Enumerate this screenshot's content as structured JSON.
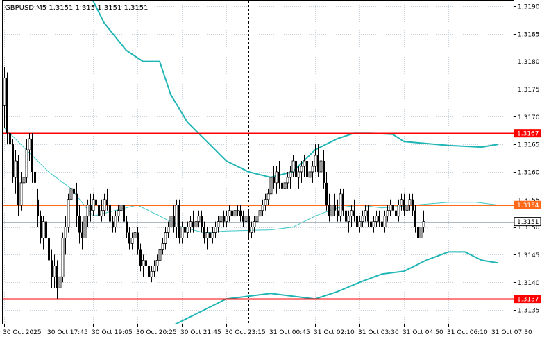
{
  "chart_data": {
    "type": "candlestick",
    "title": "GBPUSD,M5  1.3151 1.315  1.3151 1.3151",
    "ylim": [
      1.31325,
      1.3191
    ],
    "y_ticks": [
      "1.3135",
      "1.3140",
      "1.3145",
      "1.3150",
      "1.3155",
      "1.3160",
      "1.3165",
      "1.3170",
      "1.3175",
      "1.3180",
      "1.3185",
      "1.3190"
    ],
    "x_ticks": [
      {
        "index": 0,
        "label": "30 Oct 2025"
      },
      {
        "index": 16,
        "label": "30 Oct 17:45"
      },
      {
        "index": 32,
        "label": "30 Oct 19:05"
      },
      {
        "index": 48,
        "label": "30 Oct 20:25"
      },
      {
        "index": 64,
        "label": "30 Oct 21:45"
      },
      {
        "index": 80,
        "label": "30 Oct 23:15"
      },
      {
        "index": 96,
        "label": "31 Oct 00:45"
      },
      {
        "index": 112,
        "label": "31 Oct 02:10"
      },
      {
        "index": 128,
        "label": "31 Oct 03:30"
      },
      {
        "index": 144,
        "label": "31 Oct 04:50"
      },
      {
        "index": 160,
        "label": "31 Oct 06:10"
      },
      {
        "index": 176,
        "label": "31 Oct 07:30"
      }
    ],
    "levels": [
      {
        "value": 1.3167,
        "label": "1.3167",
        "color": "#ff0000",
        "width": 2
      },
      {
        "value": 1.3154,
        "label": "1.3154",
        "color": "#ff6a1a",
        "width": 1
      },
      {
        "value": 1.3137,
        "label": "1.3137",
        "color": "#ff0000",
        "width": 2
      }
    ],
    "current_price": {
      "value": 1.3151,
      "label": "1.3151"
    },
    "vertical_marker_index": 88,
    "bands": {
      "upper": [
        [
          0,
          1.3205
        ],
        [
          28,
          1.3195
        ],
        [
          36,
          1.3187
        ],
        [
          44,
          1.3182
        ],
        [
          50,
          1.318
        ],
        [
          56,
          1.318
        ],
        [
          60,
          1.3174
        ],
        [
          66,
          1.3169
        ],
        [
          72,
          1.3166
        ],
        [
          80,
          1.3162
        ],
        [
          88,
          1.316
        ],
        [
          96,
          1.3159
        ],
        [
          104,
          1.316
        ],
        [
          112,
          1.3164
        ],
        [
          120,
          1.3166
        ],
        [
          126,
          1.3167
        ],
        [
          132,
          1.3167
        ],
        [
          140,
          1.31668
        ],
        [
          144,
          1.31655
        ],
        [
          160,
          1.31648
        ],
        [
          172,
          1.31645
        ],
        [
          178,
          1.3165
        ]
      ],
      "middle": [
        [
          0,
          1.3168
        ],
        [
          10,
          1.3163
        ],
        [
          16,
          1.316
        ],
        [
          24,
          1.3157
        ],
        [
          32,
          1.3152
        ],
        [
          40,
          1.3153
        ],
        [
          48,
          1.3154
        ],
        [
          56,
          1.3152
        ],
        [
          64,
          1.315
        ],
        [
          72,
          1.3149
        ],
        [
          80,
          1.31493
        ],
        [
          96,
          1.31495
        ],
        [
          104,
          1.315
        ],
        [
          112,
          1.3152
        ],
        [
          120,
          1.31535
        ],
        [
          128,
          1.3154
        ],
        [
          136,
          1.31535
        ],
        [
          148,
          1.3154
        ],
        [
          160,
          1.31545
        ],
        [
          170,
          1.31545
        ],
        [
          178,
          1.3154
        ]
      ],
      "lower": [
        [
          50,
          1.3131
        ],
        [
          56,
          1.3131
        ],
        [
          60,
          1.3132
        ],
        [
          64,
          1.3133
        ],
        [
          72,
          1.3135
        ],
        [
          80,
          1.3137
        ],
        [
          88,
          1.31375
        ],
        [
          96,
          1.3138
        ],
        [
          104,
          1.31375
        ],
        [
          112,
          1.3137
        ],
        [
          120,
          1.31383
        ],
        [
          128,
          1.314
        ],
        [
          136,
          1.31415
        ],
        [
          144,
          1.3142
        ],
        [
          152,
          1.3144
        ],
        [
          160,
          1.31455
        ],
        [
          166,
          1.31455
        ],
        [
          172,
          1.3144
        ],
        [
          178,
          1.31435
        ]
      ]
    },
    "candles": [
      [
        1.3172,
        1.3179,
        1.3168,
        1.3177
      ],
      [
        1.3177,
        1.3178,
        1.3165,
        1.3167
      ],
      [
        1.3167,
        1.3168,
        1.3164,
        1.3165
      ],
      [
        1.3165,
        1.3166,
        1.3158,
        1.3159
      ],
      [
        1.3159,
        1.3164,
        1.3156,
        1.3162
      ],
      [
        1.3162,
        1.3163,
        1.3152,
        1.3154
      ],
      [
        1.3154,
        1.316,
        1.3153,
        1.3158
      ],
      [
        1.3158,
        1.3161,
        1.3154,
        1.3159
      ],
      [
        1.3159,
        1.3166,
        1.3158,
        1.3164
      ],
      [
        1.3164,
        1.3167,
        1.3162,
        1.3166
      ],
      [
        1.3166,
        1.3167,
        1.3158,
        1.316
      ],
      [
        1.316,
        1.3163,
        1.3154,
        1.3158
      ],
      [
        1.3155,
        1.3157,
        1.315,
        1.3152
      ],
      [
        1.3152,
        1.3153,
        1.3147,
        1.3148
      ],
      [
        1.3148,
        1.3152,
        1.3146,
        1.3151
      ],
      [
        1.3151,
        1.3152,
        1.3146,
        1.3148
      ],
      [
        1.3148,
        1.3149,
        1.3143,
        1.3144
      ],
      [
        1.3144,
        1.3146,
        1.3139,
        1.3141
      ],
      [
        1.3141,
        1.3145,
        1.3139,
        1.3143
      ],
      [
        1.3143,
        1.3144,
        1.3137,
        1.3139
      ],
      [
        1.3139,
        1.3143,
        1.3134,
        1.3141
      ],
      [
        1.3141,
        1.3149,
        1.314,
        1.3148
      ],
      [
        1.3148,
        1.3152,
        1.3145,
        1.315
      ],
      [
        1.315,
        1.3156,
        1.3149,
        1.3155
      ],
      [
        1.3155,
        1.3158,
        1.3152,
        1.3157
      ],
      [
        1.3157,
        1.3159,
        1.3154,
        1.3156
      ],
      [
        1.3156,
        1.3158,
        1.315,
        1.3152
      ],
      [
        1.3152,
        1.3154,
        1.3147,
        1.3149
      ],
      [
        1.3149,
        1.3151,
        1.3146,
        1.3148
      ],
      [
        1.3148,
        1.3153,
        1.3147,
        1.3152
      ],
      [
        1.3152,
        1.3155,
        1.315,
        1.3154
      ],
      [
        1.3154,
        1.3156,
        1.3151,
        1.3153
      ],
      [
        1.3153,
        1.3156,
        1.3152,
        1.3155
      ],
      [
        1.3155,
        1.3157,
        1.3153,
        1.3154
      ],
      [
        1.3154,
        1.3156,
        1.3151,
        1.3152
      ],
      [
        1.3152,
        1.3155,
        1.3151,
        1.3153
      ],
      [
        1.3153,
        1.3156,
        1.3152,
        1.3155
      ],
      [
        1.3155,
        1.3157,
        1.3153,
        1.3154
      ],
      [
        1.3154,
        1.3155,
        1.315,
        1.3151
      ],
      [
        1.3151,
        1.3152,
        1.3149,
        1.315
      ],
      [
        1.315,
        1.3153,
        1.3149,
        1.3152
      ],
      [
        1.3152,
        1.3154,
        1.3151,
        1.3153
      ],
      [
        1.3153,
        1.3155,
        1.3152,
        1.3154
      ],
      [
        1.3154,
        1.3155,
        1.315,
        1.3151
      ],
      [
        1.3151,
        1.3152,
        1.3148,
        1.3149
      ],
      [
        1.3149,
        1.315,
        1.3146,
        1.3147
      ],
      [
        1.3147,
        1.3149,
        1.3146,
        1.3148
      ],
      [
        1.3148,
        1.315,
        1.3147,
        1.3149
      ],
      [
        1.3149,
        1.315,
        1.3145,
        1.3146
      ],
      [
        1.3146,
        1.3147,
        1.3142,
        1.3143
      ],
      [
        1.3143,
        1.3145,
        1.3141,
        1.3144
      ],
      [
        1.3144,
        1.3145,
        1.3142,
        1.3143
      ],
      [
        1.3143,
        1.3144,
        1.3139,
        1.3141
      ],
      [
        1.3141,
        1.3143,
        1.314,
        1.3142
      ],
      [
        1.3142,
        1.3144,
        1.3141,
        1.3143
      ],
      [
        1.3143,
        1.3145,
        1.3142,
        1.3144
      ],
      [
        1.3144,
        1.3147,
        1.3143,
        1.3146
      ],
      [
        1.3146,
        1.3148,
        1.3145,
        1.3147
      ],
      [
        1.3147,
        1.315,
        1.3146,
        1.3149
      ],
      [
        1.3149,
        1.3151,
        1.3148,
        1.315
      ],
      [
        1.315,
        1.3153,
        1.3149,
        1.3152
      ],
      [
        1.3152,
        1.3154,
        1.3149,
        1.315
      ],
      [
        1.315,
        1.3155,
        1.3148,
        1.3154
      ],
      [
        1.3154,
        1.3155,
        1.3147,
        1.3148
      ],
      [
        1.3148,
        1.3151,
        1.3147,
        1.315
      ],
      [
        1.315,
        1.3152,
        1.3148,
        1.3149
      ],
      [
        1.3149,
        1.3151,
        1.3148,
        1.315
      ],
      [
        1.315,
        1.3152,
        1.3149,
        1.3151
      ],
      [
        1.3151,
        1.3153,
        1.3149,
        1.315
      ],
      [
        1.315,
        1.3152,
        1.3148,
        1.3151
      ],
      [
        1.3151,
        1.3153,
        1.315,
        1.3152
      ],
      [
        1.3152,
        1.3153,
        1.3149,
        1.315
      ],
      [
        1.315,
        1.3151,
        1.3147,
        1.3148
      ],
      [
        1.3148,
        1.315,
        1.3146,
        1.3149
      ],
      [
        1.3149,
        1.315,
        1.3147,
        1.3148
      ],
      [
        1.3148,
        1.315,
        1.3147,
        1.3149
      ],
      [
        1.3149,
        1.3151,
        1.3148,
        1.315
      ],
      [
        1.315,
        1.3152,
        1.3149,
        1.3151
      ],
      [
        1.3151,
        1.3153,
        1.315,
        1.3152
      ],
      [
        1.3152,
        1.3153,
        1.315,
        1.3151
      ],
      [
        1.3151,
        1.3153,
        1.315,
        1.3152
      ],
      [
        1.3152,
        1.3154,
        1.3151,
        1.3153
      ],
      [
        1.3153,
        1.3154,
        1.3151,
        1.3152
      ],
      [
        1.3152,
        1.3154,
        1.3151,
        1.3153
      ],
      [
        1.3153,
        1.3154,
        1.3152,
        1.3153
      ],
      [
        1.3153,
        1.3154,
        1.3151,
        1.3152
      ],
      [
        1.3152,
        1.3153,
        1.315,
        1.3151
      ],
      [
        1.3151,
        1.3153,
        1.315,
        1.3152
      ],
      [
        1.3152,
        1.3153,
        1.3148,
        1.3149
      ],
      [
        1.3149,
        1.3151,
        1.3148,
        1.315
      ],
      [
        1.315,
        1.3152,
        1.3149,
        1.3151
      ],
      [
        1.3151,
        1.3153,
        1.315,
        1.3152
      ],
      [
        1.3152,
        1.3154,
        1.3151,
        1.3153
      ],
      [
        1.3153,
        1.3155,
        1.3152,
        1.3154
      ],
      [
        1.3154,
        1.3156,
        1.3153,
        1.3155
      ],
      [
        1.3155,
        1.3157,
        1.3154,
        1.3156
      ],
      [
        1.3156,
        1.316,
        1.3155,
        1.3159
      ],
      [
        1.3159,
        1.3161,
        1.3157,
        1.3158
      ],
      [
        1.3158,
        1.3161,
        1.3156,
        1.316
      ],
      [
        1.316,
        1.3162,
        1.3157,
        1.3158
      ],
      [
        1.3158,
        1.316,
        1.3156,
        1.3157
      ],
      [
        1.3157,
        1.3159,
        1.3156,
        1.3158
      ],
      [
        1.3158,
        1.316,
        1.3157,
        1.3159
      ],
      [
        1.3159,
        1.3161,
        1.3157,
        1.316
      ],
      [
        1.316,
        1.3163,
        1.3159,
        1.3162
      ],
      [
        1.3162,
        1.3163,
        1.3158,
        1.3159
      ],
      [
        1.3159,
        1.3161,
        1.3157,
        1.316
      ],
      [
        1.316,
        1.3162,
        1.3158,
        1.3161
      ],
      [
        1.3161,
        1.3163,
        1.3159,
        1.3162
      ],
      [
        1.3162,
        1.3164,
        1.3158,
        1.3159
      ],
      [
        1.3159,
        1.3161,
        1.3157,
        1.316
      ],
      [
        1.316,
        1.3162,
        1.3158,
        1.3161
      ],
      [
        1.3161,
        1.3165,
        1.316,
        1.3163
      ],
      [
        1.3163,
        1.3165,
        1.3159,
        1.316
      ],
      [
        1.316,
        1.3163,
        1.3158,
        1.3162
      ],
      [
        1.3162,
        1.3164,
        1.3157,
        1.3158
      ],
      [
        1.3158,
        1.316,
        1.3153,
        1.3154
      ],
      [
        1.3154,
        1.3156,
        1.3151,
        1.3152
      ],
      [
        1.3152,
        1.3155,
        1.3151,
        1.3154
      ],
      [
        1.3154,
        1.3156,
        1.3152,
        1.3153
      ],
      [
        1.3153,
        1.3155,
        1.3151,
        1.3152
      ],
      [
        1.3152,
        1.3157,
        1.3151,
        1.3156
      ],
      [
        1.3156,
        1.3157,
        1.3152,
        1.3153
      ],
      [
        1.3153,
        1.3154,
        1.315,
        1.3151
      ],
      [
        1.3151,
        1.3153,
        1.3149,
        1.3152
      ],
      [
        1.3152,
        1.3154,
        1.315,
        1.3153
      ],
      [
        1.3153,
        1.3155,
        1.3151,
        1.3152
      ],
      [
        1.3152,
        1.3153,
        1.3149,
        1.315
      ],
      [
        1.315,
        1.3152,
        1.3149,
        1.3151
      ],
      [
        1.3151,
        1.3153,
        1.315,
        1.3152
      ],
      [
        1.3152,
        1.3154,
        1.3151,
        1.3153
      ],
      [
        1.3153,
        1.3154,
        1.315,
        1.3151
      ],
      [
        1.3151,
        1.3152,
        1.3149,
        1.315
      ],
      [
        1.315,
        1.3152,
        1.3149,
        1.3151
      ],
      [
        1.3151,
        1.3153,
        1.315,
        1.3152
      ],
      [
        1.3152,
        1.3153,
        1.315,
        1.3151
      ],
      [
        1.3151,
        1.3152,
        1.3149,
        1.315
      ],
      [
        1.315,
        1.3153,
        1.3149,
        1.3152
      ],
      [
        1.3152,
        1.3154,
        1.3151,
        1.3153
      ],
      [
        1.3153,
        1.3155,
        1.3152,
        1.3154
      ],
      [
        1.3154,
        1.3156,
        1.3152,
        1.3153
      ],
      [
        1.3153,
        1.3155,
        1.3151,
        1.3152
      ],
      [
        1.3152,
        1.3155,
        1.3151,
        1.3154
      ],
      [
        1.3154,
        1.3156,
        1.3153,
        1.3155
      ],
      [
        1.3155,
        1.3156,
        1.3152,
        1.3153
      ],
      [
        1.3153,
        1.3155,
        1.3151,
        1.3154
      ],
      [
        1.3154,
        1.3156,
        1.3153,
        1.3155
      ],
      [
        1.3155,
        1.3156,
        1.3152,
        1.3153
      ],
      [
        1.3153,
        1.3154,
        1.3149,
        1.315
      ],
      [
        1.315,
        1.3151,
        1.3147,
        1.3148
      ],
      [
        1.3148,
        1.3151,
        1.3147,
        1.315
      ],
      [
        1.315,
        1.3153,
        1.3149,
        1.3151
      ]
    ],
    "colors": {
      "bull_body": "#ffffff",
      "bear_body": "#000000",
      "wick": "#000000",
      "band": "#1fb5b5",
      "middle": "#3cc7c7",
      "grid": "#c9d3dc",
      "current_line": "#b0b8c0",
      "axis": "#000000",
      "text": "#000000"
    }
  }
}
